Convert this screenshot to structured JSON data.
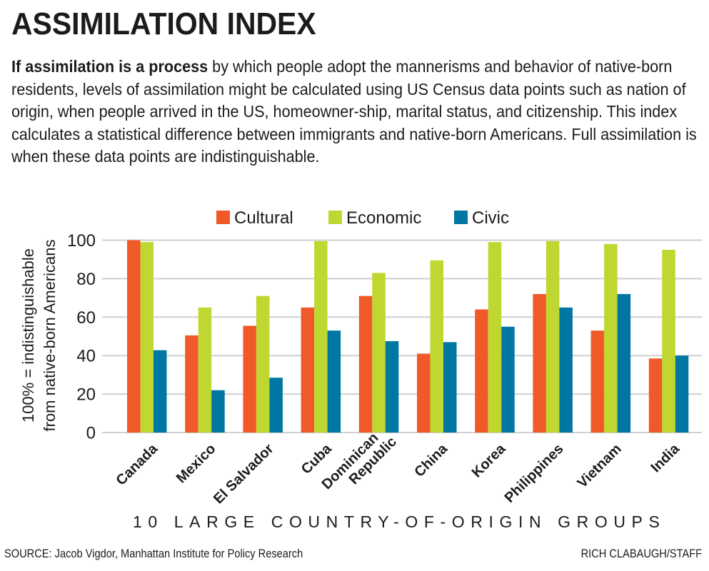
{
  "header": {
    "title": "ASSIMILATION INDEX",
    "intro_bold": "If assimilation is a process",
    "intro_rest": " by which people adopt the mannerisms and behavior of native-born residents, levels of assimilation might be calculated using US Census data points such as nation of origin, when people arrived in the US, homeowner-ship, marital status, and citizenship. This index calculates a statistical difference between immigrants and native-born Americans. Full assimilation is when these data points are indistinguishable."
  },
  "footer": {
    "source": "SOURCE: Jacob Vigdor, Manhattan Institute for Policy Research",
    "credit": "RICH CLABAUGH/STAFF"
  },
  "chart_data": {
    "type": "bar",
    "title": "ASSIMILATION INDEX",
    "xlabel": "10 LARGE COUNTRY-OF-ORIGIN GROUPS",
    "ylabel_lines": [
      "100% = indistinguishable",
      "from native-born Americans"
    ],
    "ylim": [
      0,
      100
    ],
    "yticks": [
      0,
      20,
      40,
      60,
      80,
      100
    ],
    "grid": true,
    "legend_position": "top-center",
    "categories": [
      [
        "Canada"
      ],
      [
        "Mexico"
      ],
      [
        "El Salvador"
      ],
      [
        "Cuba"
      ],
      [
        "Dominican",
        "Republic"
      ],
      [
        "China"
      ],
      [
        "Korea"
      ],
      [
        "Philippines"
      ],
      [
        "Vietnam"
      ],
      [
        "India"
      ]
    ],
    "series": [
      {
        "name": "Cultural",
        "color": "#f05a28",
        "values": [
          100,
          50.5,
          55.5,
          65,
          71,
          41,
          64,
          72,
          53,
          38.5
        ]
      },
      {
        "name": "Economic",
        "color": "#bfd730",
        "values": [
          99,
          65,
          71,
          99.5,
          83,
          89.5,
          99,
          99.5,
          98,
          95
        ]
      },
      {
        "name": "Civic",
        "color": "#0077a3",
        "values": [
          42.8,
          22,
          28.5,
          53,
          47.5,
          47,
          55,
          65,
          72,
          40
        ]
      }
    ]
  }
}
